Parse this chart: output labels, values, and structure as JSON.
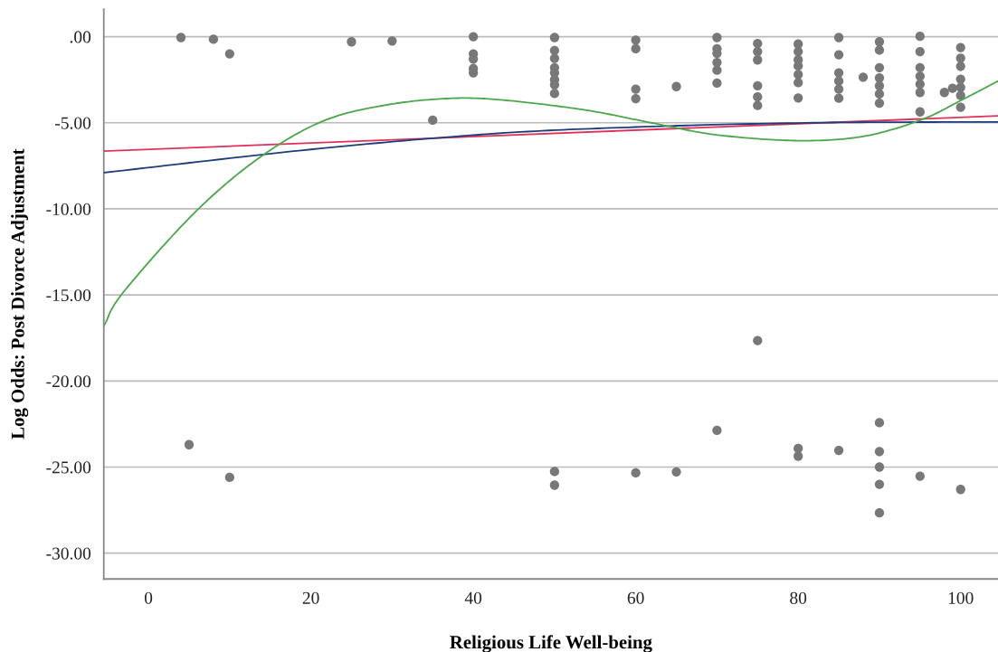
{
  "chart_data": {
    "type": "scatter",
    "xlabel": "Religious Life Well-being",
    "ylabel": "Log Odds: Post Divorce Adjustment",
    "xlim": [
      -5.5,
      104.6
    ],
    "ylim": [
      -31.5,
      1.6
    ],
    "xticks": [
      0,
      20,
      40,
      60,
      80,
      100
    ],
    "yticks": [
      {
        "value": 0,
        "label": ".00"
      },
      {
        "value": -5,
        "label": "-5.00"
      },
      {
        "value": -10,
        "label": "-10.00"
      },
      {
        "value": -15,
        "label": "-15.00"
      },
      {
        "value": -20,
        "label": "-20.00"
      },
      {
        "value": -25,
        "label": "-25.00"
      },
      {
        "value": -30,
        "label": "-30.00"
      }
    ],
    "grid": "y",
    "legend": false,
    "series": [
      {
        "color": "#787878",
        "marker": "circle",
        "x": [
          4,
          8,
          10,
          25,
          30,
          35,
          40,
          40,
          40,
          40,
          40,
          5,
          10,
          50,
          50,
          50,
          50,
          50,
          50,
          50,
          50,
          60,
          60,
          60,
          60,
          65,
          70,
          70,
          70,
          70,
          70,
          70,
          75,
          75,
          75,
          75,
          75,
          75,
          80,
          80,
          80,
          80,
          80,
          80,
          80,
          85,
          85,
          85,
          85,
          85,
          85,
          88,
          90,
          90,
          90,
          90,
          90,
          90,
          90,
          95,
          95,
          95,
          95,
          95,
          95,
          95,
          98,
          99,
          100,
          100,
          100,
          100,
          100,
          100,
          100,
          75,
          50,
          50,
          60,
          65,
          70,
          80,
          80,
          85,
          90,
          90,
          90,
          90,
          90,
          95,
          100
        ],
        "values": [
          -0.05,
          -0.15,
          -1.0,
          -0.3,
          -0.25,
          -4.85,
          0.0,
          -1.0,
          -1.3,
          -1.85,
          -2.1,
          -23.7,
          -25.6,
          -0.05,
          -0.8,
          -1.26,
          -1.8,
          -2.1,
          -2.5,
          -2.8,
          -3.3,
          -0.2,
          -0.7,
          -3.05,
          -3.6,
          -2.9,
          -0.05,
          -0.7,
          -0.97,
          -1.5,
          -1.95,
          -2.7,
          -0.4,
          -0.87,
          -1.35,
          -2.85,
          -3.5,
          -4.0,
          -0.43,
          -0.87,
          -1.35,
          -1.7,
          -2.2,
          -2.67,
          -3.56,
          -0.05,
          -1.05,
          -2.1,
          -2.58,
          -3.05,
          -3.58,
          -2.35,
          -0.3,
          -0.78,
          -1.8,
          -2.4,
          -2.86,
          -3.33,
          -3.86,
          0.02,
          -0.87,
          -1.8,
          -2.3,
          -2.76,
          -3.24,
          -4.37,
          -3.24,
          -3.0,
          -0.63,
          -1.25,
          -1.72,
          -2.47,
          -2.95,
          -3.42,
          -4.1,
          -17.65,
          -25.26,
          -26.05,
          -25.34,
          -25.28,
          -22.87,
          -23.92,
          -24.37,
          -24.03,
          -22.42,
          -24.1,
          -25.0,
          -26.0,
          -27.66,
          -25.53,
          -26.3
        ]
      },
      {
        "type": "line",
        "color": "#e0305a",
        "x": [
          -5.5,
          104.6
        ],
        "values": [
          -6.65,
          -4.6
        ]
      },
      {
        "type": "line",
        "color": "#1f3d7a",
        "x": [
          -5.5,
          20,
          42,
          60,
          82,
          104.6
        ],
        "values": [
          -7.9,
          -6.55,
          -5.65,
          -5.25,
          -5.0,
          -4.95
        ]
      },
      {
        "type": "line",
        "color": "#4ca64c",
        "x": [
          -5.5,
          -3.1,
          5.6,
          13.6,
          21.5,
          29.5,
          37.4,
          44.1,
          53.9,
          61.9,
          69.9,
          80,
          88,
          95.1,
          100,
          104.6
        ],
        "values": [
          -16.8,
          -14.85,
          -10.26,
          -7.05,
          -4.9,
          -3.95,
          -3.58,
          -3.7,
          -4.27,
          -5.0,
          -5.7,
          -6.04,
          -5.79,
          -4.84,
          -3.71,
          -2.58
        ]
      }
    ]
  }
}
